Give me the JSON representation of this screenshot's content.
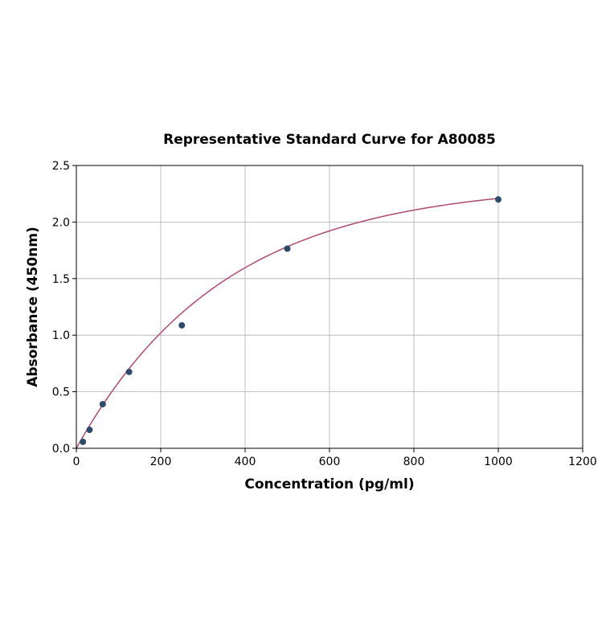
{
  "chart_data": {
    "type": "scatter",
    "title": "Representative Standard Curve for A80085",
    "xlabel": "Concentration (pg/ml)",
    "ylabel": "Absorbance (450nm)",
    "xlim": [
      0,
      1200
    ],
    "ylim": [
      0,
      2.5
    ],
    "xticks": [
      0,
      200,
      400,
      600,
      800,
      1000,
      1200
    ],
    "yticks": [
      0.0,
      0.5,
      1.0,
      1.5,
      2.0,
      2.5
    ],
    "ytick_labels": [
      "0.0",
      "0.5",
      "1.0",
      "1.5",
      "2.0",
      "2.5"
    ],
    "grid": true,
    "points": [
      {
        "x": 15.6,
        "y": 0.057
      },
      {
        "x": 31.25,
        "y": 0.163
      },
      {
        "x": 62.5,
        "y": 0.39
      },
      {
        "x": 125,
        "y": 0.675
      },
      {
        "x": 250,
        "y": 1.087
      },
      {
        "x": 500,
        "y": 1.765
      },
      {
        "x": 1000,
        "y": 2.2
      }
    ],
    "fit_curve": {
      "type": "saturating fit",
      "x_range": [
        0,
        1000
      ]
    },
    "colors": {
      "points": "#2e4a6b",
      "curve": "#b04a6e",
      "grid": "#b0b0b0"
    }
  }
}
